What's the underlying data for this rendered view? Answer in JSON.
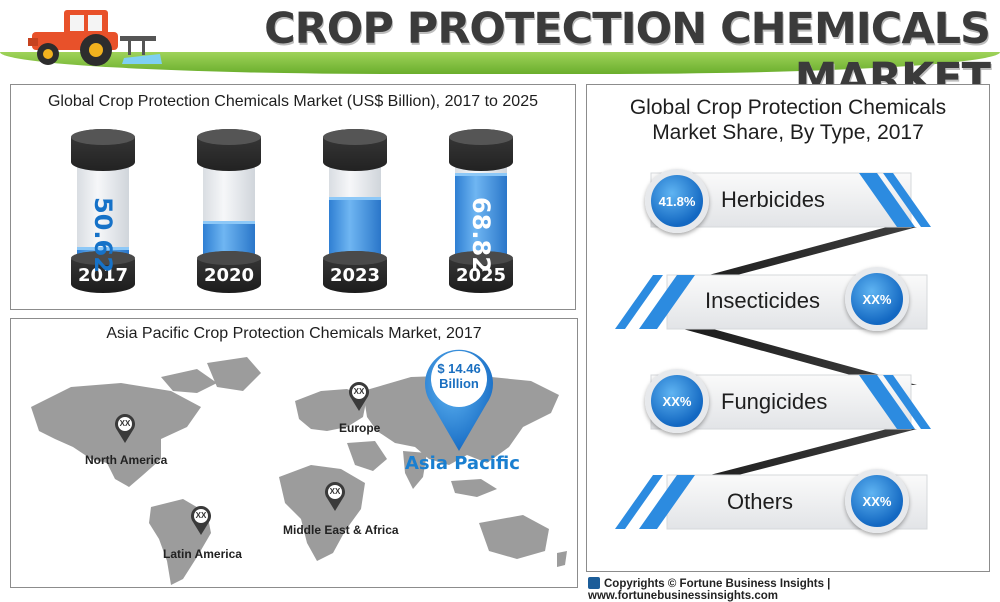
{
  "header": {
    "title": "CROP PROTECTION CHEMICALS MARKET"
  },
  "global_chart": {
    "title": "Global Crop Protection Chemicals Market (US$ Billion), 2017 to 2025",
    "chart_data": {
      "type": "bar",
      "title": "Global Crop Protection Chemicals Market (US$ Billion), 2017 to 2025",
      "categories": [
        "2017",
        "2020",
        "2023",
        "2025"
      ],
      "values": [
        50.62,
        null,
        null,
        68.82
      ],
      "fill_fraction": [
        0.12,
        0.38,
        0.62,
        0.86
      ],
      "value_labels": [
        "50.62",
        "",
        "",
        "68.82"
      ]
    }
  },
  "asia_map": {
    "title": "Asia Pacific Crop Protection Chemicals Market, 2017",
    "highlight_value": "$ 14.46",
    "highlight_unit": "Billion",
    "highlight_region": "Asia Pacific",
    "regions": [
      {
        "name": "North America",
        "value": "XX"
      },
      {
        "name": "Europe",
        "value": "XX"
      },
      {
        "name": "Latin America",
        "value": "XX"
      },
      {
        "name": "Middle East & Africa",
        "value": "XX"
      }
    ]
  },
  "share": {
    "title_line1": "Global Crop Protection Chemicals",
    "title_line2": "Market Share, By Type, 2017",
    "items": [
      {
        "type": "Herbicides",
        "value": "41.8%"
      },
      {
        "type": "Insecticides",
        "value": "XX%"
      },
      {
        "type": "Fungicides",
        "value": "XX%"
      },
      {
        "type": "Others",
        "value": "XX%"
      }
    ]
  },
  "footer": {
    "text": "Copyrights © Fortune Business Insights | www.fortunebusinessinsights.com"
  },
  "colors": {
    "accent_blue": "#1a7fd0",
    "title_gray": "#3b3b3b",
    "grass_green": "#7dbd3a"
  }
}
